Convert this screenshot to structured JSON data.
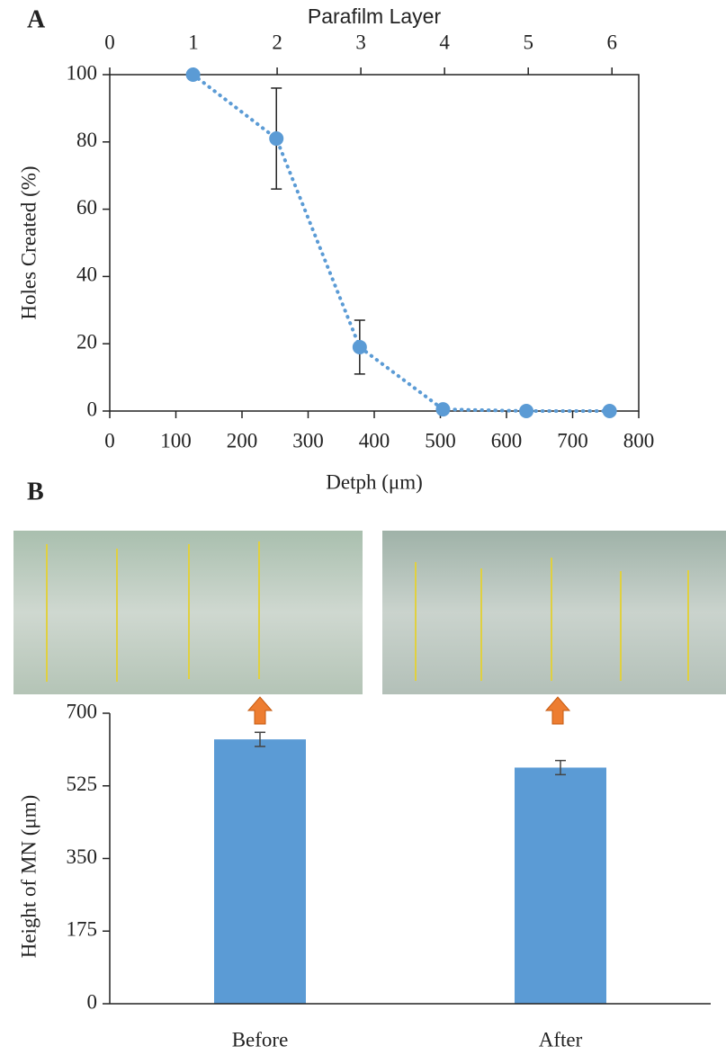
{
  "chart_data": [
    {
      "type": "line",
      "panel": "A",
      "x2label": "Parafilm Layer",
      "ylabel": "Holes Created (%)",
      "xlabel": "Detph (μm)",
      "x": [
        126,
        252,
        378,
        504,
        630,
        756
      ],
      "series": [
        {
          "color": "#5b9bd5",
          "values": [
            100,
            81,
            19,
            0.5,
            0,
            0
          ],
          "errors": [
            0,
            15,
            8,
            0,
            0,
            0
          ]
        }
      ],
      "xlim": [
        0,
        800
      ],
      "xticks": [
        0,
        100,
        200,
        300,
        400,
        500,
        600,
        700,
        800
      ],
      "x2lim": [
        0,
        6.32
      ],
      "x2ticks": [
        0,
        1,
        2,
        3,
        4,
        5,
        6
      ],
      "ylim": [
        0,
        100
      ],
      "yticks": [
        0,
        20,
        40,
        60,
        80,
        100
      ]
    },
    {
      "type": "bar",
      "panel": "B",
      "ylabel": "Height of MN (μm)",
      "categories": [
        "Before",
        "After"
      ],
      "values": [
        637,
        569
      ],
      "errors": [
        17,
        17
      ],
      "color": "#5b9bd5",
      "ylim": [
        0,
        700
      ],
      "yticks": [
        0,
        175,
        350,
        525,
        700
      ]
    }
  ]
}
